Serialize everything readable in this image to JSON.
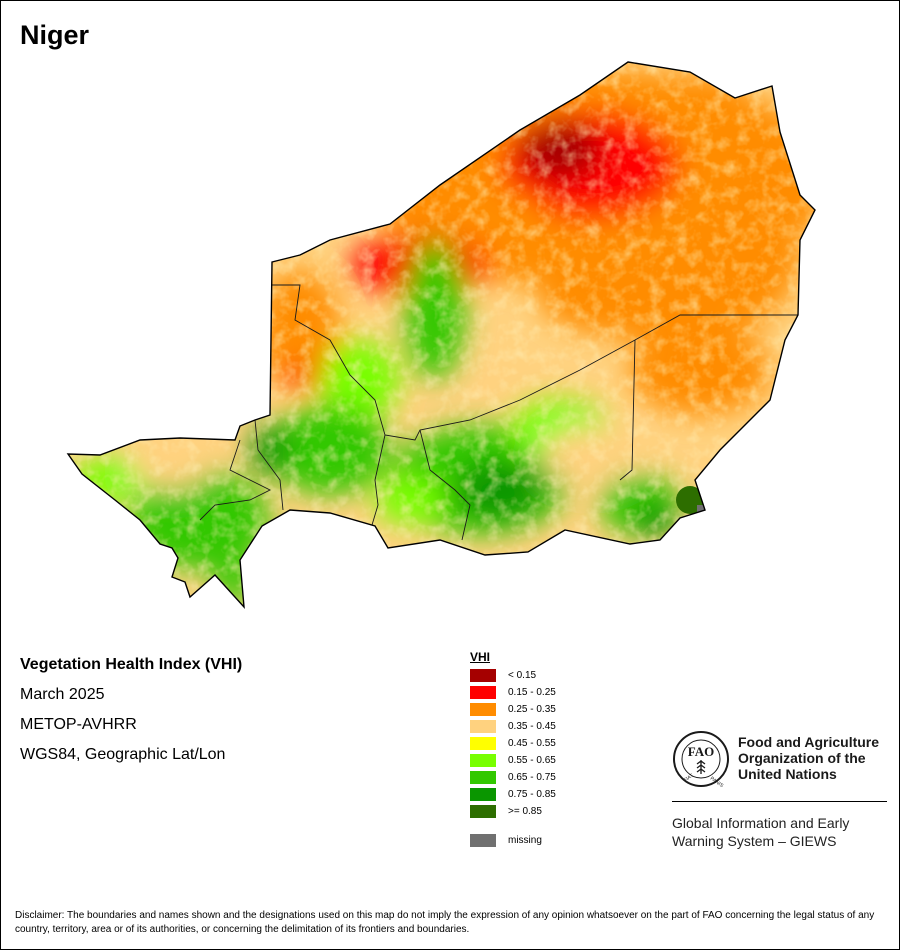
{
  "map": {
    "title": "Niger"
  },
  "info": {
    "index_name": "Vegetation Health Index (VHI)",
    "period": "March 2025",
    "sensor": "METOP-AVHRR",
    "projection": "WGS84, Geographic Lat/Lon"
  },
  "legend": {
    "title": "VHI",
    "classes": [
      {
        "label": "< 0.15",
        "color": "#a50000"
      },
      {
        "label": "0.15 - 0.25",
        "color": "#ff0000"
      },
      {
        "label": "0.25 - 0.35",
        "color": "#ff8c00"
      },
      {
        "label": "0.35 - 0.45",
        "color": "#ffd27f"
      },
      {
        "label": "0.45 - 0.55",
        "color": "#ffff00"
      },
      {
        "label": "0.55 - 0.65",
        "color": "#78ff00"
      },
      {
        "label": "0.65 - 0.75",
        "color": "#32c800"
      },
      {
        "label": "0.75 - 0.85",
        "color": "#0a9600"
      },
      {
        "label": ">= 0.85",
        "color": "#2d6e00"
      }
    ],
    "missing": {
      "label": "missing",
      "color": "#707070"
    }
  },
  "fao": {
    "logo_icon": "fao-emblem-icon",
    "logo_lettering": "FAO FIAT PANIS",
    "name": "Food and Agriculture Organization of the United Nations",
    "system": "Global Information and Early Warning System – GIEWS"
  },
  "disclaimer": "Disclaimer: The boundaries and names shown and the designations used on this map do not imply the expression of any opinion whatsoever on the part of FAO concerning the legal status of any country, territory, area or of its authorities, or concerning the delimitation of its frontiers and boundaries."
}
